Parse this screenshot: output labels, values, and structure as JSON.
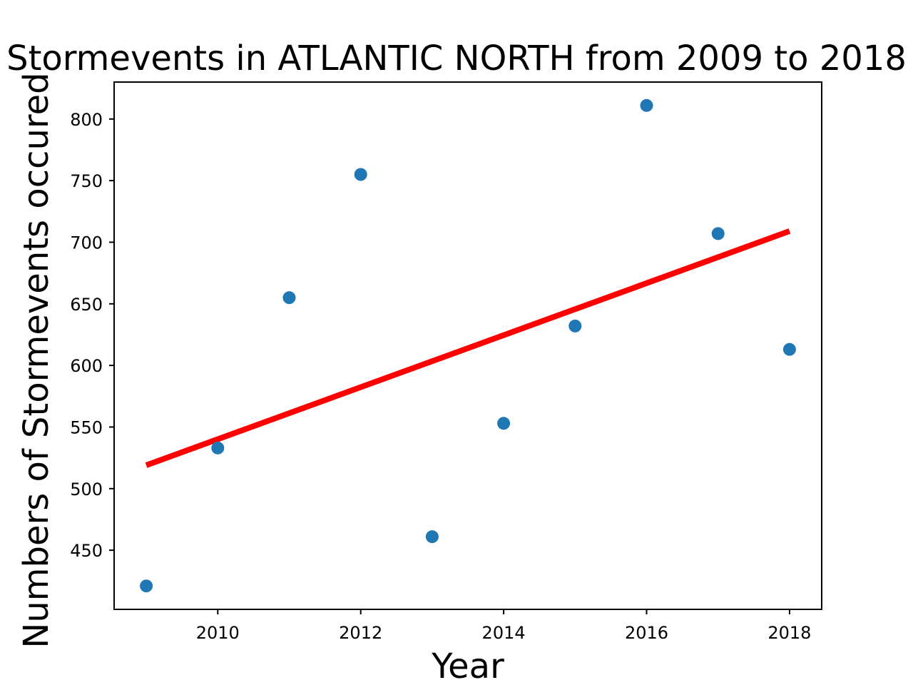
{
  "chart_data": {
    "type": "scatter",
    "title": "Stormevents in ATLANTIC NORTH from 2009 to 2018",
    "xlabel": "Year",
    "ylabel": "Numbers of Stormevents occured",
    "x_ticks": [
      2010,
      2012,
      2014,
      2016,
      2018
    ],
    "y_ticks": [
      450,
      500,
      550,
      600,
      650,
      700,
      750,
      800
    ],
    "xlim": [
      2008.55,
      2018.45
    ],
    "ylim": [
      402,
      830
    ],
    "grid": false,
    "legend": "none",
    "series": [
      {
        "type": "scatter",
        "color": "#1f77b4",
        "x": [
          2009,
          2010,
          2011,
          2012,
          2013,
          2014,
          2015,
          2016,
          2017,
          2018
        ],
        "y": [
          421,
          533,
          655,
          755,
          461,
          553,
          632,
          811,
          707,
          613
        ]
      },
      {
        "type": "line",
        "color": "#ff0000",
        "x": [
          2009,
          2018
        ],
        "y": [
          519,
          709
        ]
      }
    ]
  }
}
